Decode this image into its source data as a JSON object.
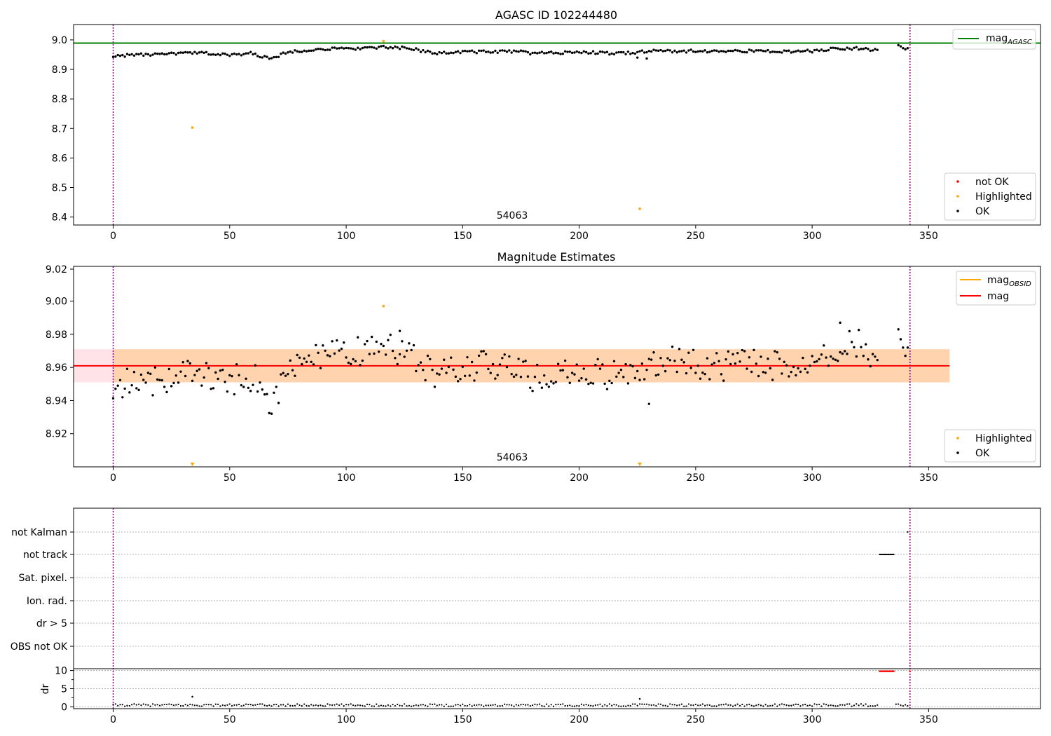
{
  "chart_data": [
    {
      "type": "scatter",
      "title": "AGASC ID 102244480",
      "annotation": "54063",
      "xlim": [
        -17,
        398
      ],
      "ylim": [
        8.373,
        9.052
      ],
      "xticks": [
        0,
        50,
        100,
        150,
        200,
        250,
        300,
        350
      ],
      "yticks": [
        8.4,
        8.5,
        8.6,
        8.7,
        8.8,
        8.9,
        9.0
      ],
      "grid": false,
      "vlines": [
        0,
        342
      ],
      "hlines": [
        {
          "name": "mag_AGASC",
          "y": 8.989,
          "color": "#008000"
        }
      ],
      "series": [
        {
          "name": "OK",
          "color": "#000000",
          "x_start": 0,
          "x_end": 328,
          "keypoints": [
            [
              0,
              8.945
            ],
            [
              10,
              8.95
            ],
            [
              20,
              8.95
            ],
            [
              30,
              8.955
            ],
            [
              40,
              8.955
            ],
            [
              50,
              8.948
            ],
            [
              60,
              8.955
            ],
            [
              67,
              8.935
            ],
            [
              75,
              8.958
            ],
            [
              85,
              8.968
            ],
            [
              100,
              8.97
            ],
            [
              115,
              8.975
            ],
            [
              125,
              8.972
            ],
            [
              140,
              8.955
            ],
            [
              150,
              8.96
            ],
            [
              165,
              8.96
            ],
            [
              175,
              8.96
            ],
            [
              180,
              8.955
            ],
            [
              190,
              8.955
            ],
            [
              200,
              8.96
            ],
            [
              210,
              8.955
            ],
            [
              220,
              8.955
            ],
            [
              230,
              8.962
            ],
            [
              240,
              8.962
            ],
            [
              250,
              8.962
            ],
            [
              260,
              8.962
            ],
            [
              270,
              8.962
            ],
            [
              280,
              8.962
            ],
            [
              290,
              8.96
            ],
            [
              300,
              8.962
            ],
            [
              310,
              8.97
            ],
            [
              320,
              8.972
            ],
            [
              328,
              8.965
            ]
          ],
          "noise": 0.009,
          "extra_points": [
            [
              229,
              8.937
            ],
            [
              225,
              8.94
            ],
            [
              337,
              8.982
            ],
            [
              338,
              8.978
            ],
            [
              339,
              8.972
            ],
            [
              340,
              8.968
            ],
            [
              341,
              8.972
            ]
          ]
        },
        {
          "name": "Highlighted",
          "color": "#ffa500",
          "points": [
            [
              34,
              8.703
            ],
            [
              116,
              8.996
            ],
            [
              226,
              8.428
            ]
          ]
        },
        {
          "name": "not OK",
          "color": "#ff0000",
          "points": []
        }
      ],
      "legends": [
        {
          "position": "top-right",
          "entries": [
            {
              "label": "mag",
              "sub": "AGASC",
              "kind": "line",
              "color": "#008000"
            }
          ]
        },
        {
          "position": "bottom-right",
          "entries": [
            {
              "label": "not OK",
              "kind": "dot",
              "color": "#ff0000"
            },
            {
              "label": "Highlighted",
              "kind": "dot",
              "color": "#ffa500"
            },
            {
              "label": "OK",
              "kind": "dot",
              "color": "#000000"
            }
          ]
        }
      ]
    },
    {
      "type": "scatter",
      "title": "Magnitude Estimates",
      "annotation": "54063",
      "xlim": [
        -17,
        398
      ],
      "ylim": [
        8.9,
        9.021
      ],
      "xticks": [
        0,
        50,
        100,
        150,
        200,
        250,
        300,
        350
      ],
      "yticks": [
        8.92,
        8.94,
        8.96,
        8.98,
        9.0
      ],
      "ytick_labels": [
        "8.92",
        "8.94",
        "8.96",
        "8.98",
        "9.00"
      ],
      "grid": false,
      "vlines": [
        0,
        342
      ],
      "bands": [
        {
          "y0": 8.951,
          "y1": 8.971,
          "x0": -17,
          "x1": 359,
          "color": "#ffc0cb",
          "opacity": 0.45
        },
        {
          "y0": 8.951,
          "y1": 8.971,
          "x0": 0,
          "x1": 359,
          "color": "#ffa500",
          "opacity": 0.25
        }
      ],
      "hlines": [
        {
          "name": "mag",
          "y": 8.961,
          "x0": -17,
          "x1": 359,
          "color": "#ff0000"
        }
      ],
      "series": [
        {
          "name": "OK",
          "color": "#000000",
          "x_start": 0,
          "x_end": 328,
          "keypoints": [
            [
              0,
              8.948
            ],
            [
              10,
              8.952
            ],
            [
              20,
              8.952
            ],
            [
              30,
              8.958
            ],
            [
              40,
              8.955
            ],
            [
              50,
              8.952
            ],
            [
              60,
              8.955
            ],
            [
              67,
              8.936
            ],
            [
              75,
              8.958
            ],
            [
              85,
              8.967
            ],
            [
              100,
              8.968
            ],
            [
              115,
              8.972
            ],
            [
              125,
              8.97
            ],
            [
              140,
              8.955
            ],
            [
              150,
              8.96
            ],
            [
              165,
              8.962
            ],
            [
              175,
              8.962
            ],
            [
              180,
              8.952
            ],
            [
              190,
              8.955
            ],
            [
              200,
              8.958
            ],
            [
              210,
              8.956
            ],
            [
              220,
              8.955
            ],
            [
              230,
              8.962
            ],
            [
              240,
              8.966
            ],
            [
              250,
              8.962
            ],
            [
              260,
              8.96
            ],
            [
              270,
              8.964
            ],
            [
              280,
              8.962
            ],
            [
              290,
              8.96
            ],
            [
              300,
              8.964
            ],
            [
              310,
              8.972
            ],
            [
              320,
              8.974
            ],
            [
              328,
              8.967
            ]
          ],
          "noise": 0.009,
          "extra_points": [
            [
              230,
              8.938
            ],
            [
              123,
              8.982
            ],
            [
              312,
              8.987
            ],
            [
              337,
              8.983
            ],
            [
              338,
              8.977
            ],
            [
              339,
              8.972
            ],
            [
              340,
              8.967
            ],
            [
              341,
              8.972
            ]
          ]
        },
        {
          "name": "Highlighted",
          "color": "#ffa500",
          "points": [
            [
              116,
              8.997
            ]
          ],
          "offscale_points_x": [
            34,
            226
          ]
        }
      ],
      "legends": [
        {
          "position": "top-right",
          "entries": [
            {
              "label": "mag",
              "sub": "OBSID",
              "kind": "line",
              "color": "#ffa500"
            },
            {
              "label": "mag",
              "kind": "line",
              "color": "#ff0000"
            }
          ]
        },
        {
          "position": "bottom-right",
          "entries": [
            {
              "label": "Highlighted",
              "kind": "dot",
              "color": "#ffa500"
            },
            {
              "label": "OK",
              "kind": "dot",
              "color": "#000000"
            }
          ]
        }
      ]
    },
    {
      "type": "scatter",
      "xlim": [
        -17,
        398
      ],
      "xticks": [
        0,
        50,
        100,
        150,
        200,
        250,
        300,
        350
      ],
      "vlines": [
        0,
        342
      ],
      "flag_rows": [
        "not Kalman",
        "not track",
        "Sat. pixel.",
        "Ion. rad.",
        "dr > 5",
        "OBS not OK"
      ],
      "flag_points": [
        {
          "row": "not track",
          "x_start": 329,
          "x_end": 335
        },
        {
          "row": "not Kalman",
          "x_start": 341,
          "x_end": 341
        }
      ],
      "dr": {
        "ylabel": "dr",
        "ylim": [
          -0.5,
          10.5
        ],
        "yticks": [
          0,
          5,
          10
        ],
        "minor_ticks": [
          2.5,
          7.5
        ],
        "x_start": 0,
        "x_end": 341,
        "typical": 0.5,
        "spikes": [
          [
            34,
            2.8
          ],
          [
            226,
            2.2
          ]
        ],
        "flagged": {
          "x_start": 329,
          "x_end": 335,
          "value": 9.8,
          "color": "#ff0000"
        },
        "flagged_extra": [
          [
            342,
            9.8
          ]
        ]
      }
    }
  ]
}
